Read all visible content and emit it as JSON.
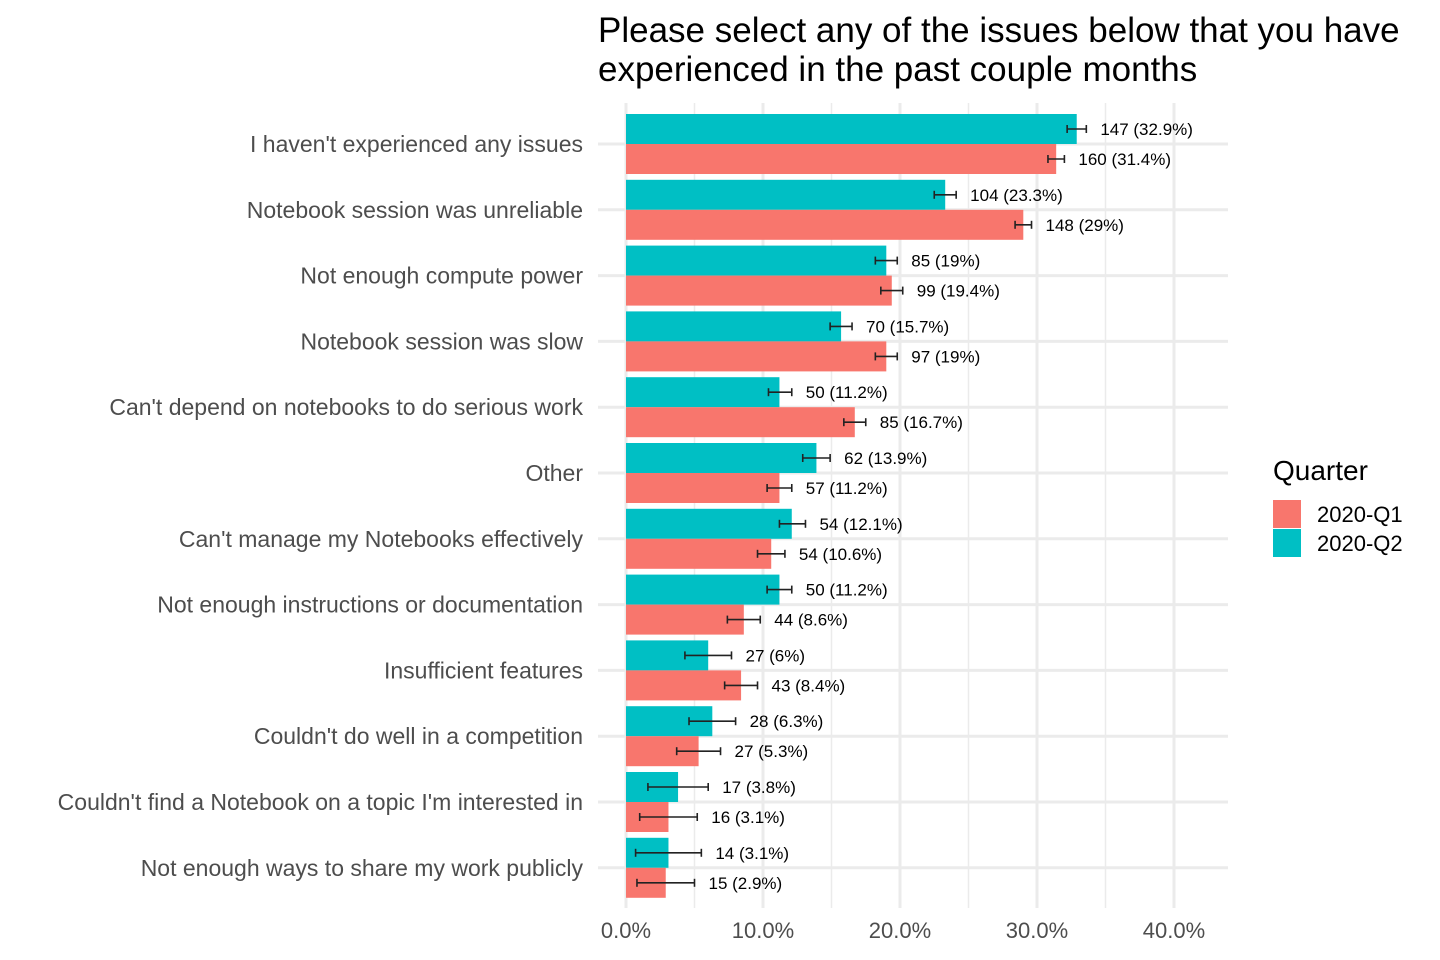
{
  "chart_data": {
    "type": "bar",
    "orientation": "horizontal",
    "title_lines": [
      "Please select any of the issues below that you have",
      "experienced in the past couple months"
    ],
    "xlabel": "",
    "ylabel": "",
    "xlim": [
      0,
      40
    ],
    "x_ticks": [
      0,
      10,
      20,
      30,
      40
    ],
    "x_tick_labels": [
      "0.0%",
      "10.0%",
      "20.0%",
      "30.0%",
      "40.0%"
    ],
    "grid": true,
    "legend": {
      "title": "Quarter",
      "position": "right",
      "entries": [
        {
          "name": "2020-Q1",
          "color": "#F8766D"
        },
        {
          "name": "2020-Q2",
          "color": "#00BFC4"
        }
      ]
    },
    "categories": [
      "I haven't experienced any issues",
      "Notebook session was unreliable",
      "Not enough compute power",
      "Notebook session was slow",
      "Can't depend on notebooks to do serious work",
      "Other",
      "Can't manage my Notebooks effectively",
      "Not enough instructions or documentation",
      "Insufficient features",
      "Couldn't do well in a competition",
      "Couldn't find a Notebook on a topic I'm interested in",
      "Not enough ways to share my work publicly"
    ],
    "series": [
      {
        "name": "2020-Q2",
        "color": "#00BFC4",
        "values": [
          32.9,
          23.3,
          19.0,
          15.7,
          11.2,
          13.9,
          12.1,
          11.2,
          6.0,
          6.3,
          3.8,
          3.1
        ],
        "error_low": [
          32.2,
          22.5,
          18.2,
          14.9,
          10.4,
          12.9,
          11.2,
          10.3,
          4.3,
          4.6,
          1.6,
          0.7
        ],
        "error_high": [
          33.6,
          24.1,
          19.8,
          16.5,
          12.1,
          14.9,
          13.1,
          12.1,
          7.7,
          8.0,
          6.0,
          5.5
        ],
        "labels": [
          "147 (32.9%)",
          "104 (23.3%)",
          "85 (19%)",
          "70 (15.7%)",
          "50 (11.2%)",
          "62 (13.9%)",
          "54 (12.1%)",
          "50 (11.2%)",
          "27 (6%)",
          "28 (6.3%)",
          "17 (3.8%)",
          "14 (3.1%)"
        ]
      },
      {
        "name": "2020-Q1",
        "color": "#F8766D",
        "values": [
          31.4,
          29.0,
          19.4,
          19.0,
          16.7,
          11.2,
          10.6,
          8.6,
          8.4,
          5.3,
          3.1,
          2.9
        ],
        "error_low": [
          30.8,
          28.4,
          18.6,
          18.2,
          15.9,
          10.3,
          9.6,
          7.4,
          7.2,
          3.7,
          1.0,
          0.8
        ],
        "error_high": [
          32.0,
          29.6,
          20.2,
          19.8,
          17.5,
          12.1,
          11.6,
          9.8,
          9.6,
          6.9,
          5.2,
          5.0
        ],
        "labels": [
          "160 (31.4%)",
          "148 (29%)",
          "99 (19.4%)",
          "97 (19%)",
          "85 (16.7%)",
          "57 (11.2%)",
          "54 (10.6%)",
          "44 (8.6%)",
          "43 (8.4%)",
          "27 (5.3%)",
          "16 (3.1%)",
          "15 (2.9%)"
        ]
      }
    ]
  }
}
